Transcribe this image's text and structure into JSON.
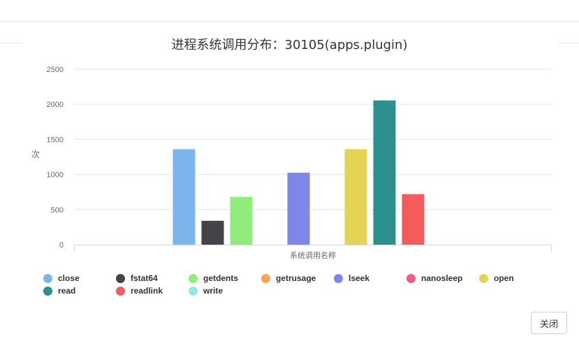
{
  "dialog": {
    "title": "进程系统调用分布：30105(apps.plugin)",
    "close_label": "关闭"
  },
  "chart_data": {
    "type": "bar",
    "xlabel": "系统调用名称",
    "ylabel": "次",
    "ylim": [
      0,
      2500
    ],
    "yticks": [
      0,
      500,
      1000,
      1500,
      2000,
      2500
    ],
    "grid": true,
    "legend_position": "bottom-left",
    "series": [
      {
        "name": "close",
        "value": 1360,
        "color": "#7cb5ec"
      },
      {
        "name": "fstat64",
        "value": 340,
        "color": "#434348"
      },
      {
        "name": "getdents",
        "value": 680,
        "color": "#90ed7d"
      },
      {
        "name": "getrusage",
        "value": 0,
        "color": "#f7a35c"
      },
      {
        "name": "lseek",
        "value": 1025,
        "color": "#8085e9"
      },
      {
        "name": "nanosleep",
        "value": 0,
        "color": "#f15c80"
      },
      {
        "name": "open",
        "value": 1360,
        "color": "#e4d354"
      },
      {
        "name": "read",
        "value": 2055,
        "color": "#2b908f"
      },
      {
        "name": "readlink",
        "value": 720,
        "color": "#f45b5b"
      },
      {
        "name": "write",
        "value": 0,
        "color": "#91e8e1"
      }
    ]
  }
}
